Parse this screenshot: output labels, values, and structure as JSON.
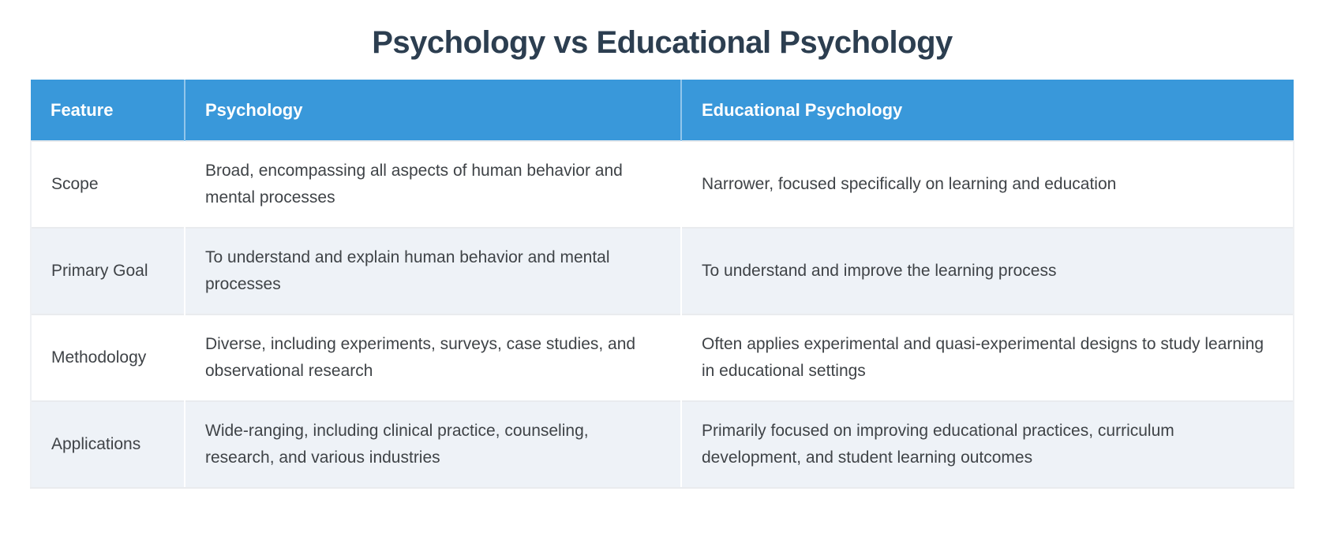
{
  "title": "Psychology vs Educational Psychology",
  "table": {
    "columns": [
      "Feature",
      "Psychology",
      "Educational Psychology"
    ],
    "rows": [
      [
        "Scope",
        "Broad, encompassing all aspects of human behavior and mental processes",
        "Narrower, focused specifically on learning and education"
      ],
      [
        "Primary Goal",
        "To understand and explain human behavior and mental processes",
        "To understand and improve the learning process"
      ],
      [
        "Methodology",
        "Diverse, including experiments, surveys, case studies, and observational research",
        "Often applies experimental and quasi-experimental designs to study learning in educational settings"
      ],
      [
        "Applications",
        "Wide-ranging, including clinical practice, counseling, research, and various industries",
        "Primarily focused on improving educational practices, curriculum development, and student learning outcomes"
      ]
    ]
  },
  "colors": {
    "header_bg": "#3998da",
    "header_text": "#ffffff",
    "title_color": "#2c3e50",
    "body_text": "#3f4347",
    "row_alt_bg": "#eef2f7",
    "separator": "#e9ebee",
    "col_divider": "#ffffff",
    "page_bg": "#ffffff"
  }
}
